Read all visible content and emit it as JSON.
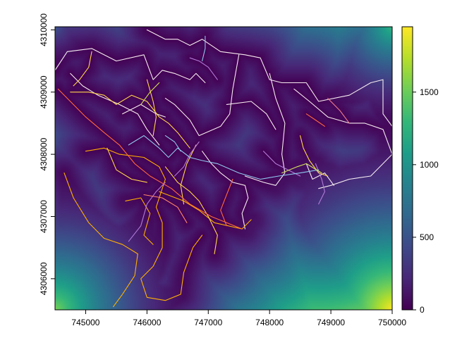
{
  "chart_data": {
    "type": "heatmap",
    "title": "",
    "xlabel": "",
    "ylabel": "",
    "xlim": [
      744500,
      750000
    ],
    "ylim": [
      4305500,
      4310050
    ],
    "x_ticks": [
      745000,
      746000,
      747000,
      748000,
      749000,
      750000
    ],
    "y_ticks": [
      4306000,
      4307000,
      4308000,
      4309000,
      4310000
    ],
    "x_tick_labels": [
      "745000",
      "746000",
      "747000",
      "748000",
      "749000",
      "750000"
    ],
    "y_tick_labels": [
      "4306000",
      "4307000",
      "4308000",
      "4309000",
      "4310000"
    ],
    "colorbar": {
      "palette": "viridis",
      "range": [
        0,
        1950
      ],
      "ticks": [
        0,
        500,
        1000,
        1500
      ],
      "tick_labels": [
        "0",
        "500",
        "1000",
        "1500"
      ]
    },
    "grid": false,
    "legend": "colorbar-right",
    "raster_description": "distance-to-road surface; highest values in the south-east and south-west corners and north-east corner",
    "road_colors": [
      "#f5ecf0",
      "#ffb000",
      "#ffd84d",
      "#ff6a3d",
      "#b07cd8",
      "#8ec9ee",
      "#ff8a6a",
      "#f27f8d",
      "#d2e15a"
    ],
    "roads": [
      {
        "color": "#f5ecf0",
        "points": [
          [
            744500,
            4309350
          ],
          [
            744700,
            4309650
          ],
          [
            745100,
            4309700
          ],
          [
            745500,
            4309500
          ],
          [
            745950,
            4309600
          ],
          [
            746100,
            4309200
          ],
          [
            746250,
            4309350
          ],
          [
            746450,
            4309300
          ],
          [
            746700,
            4309200
          ],
          [
            746800,
            4309300
          ],
          [
            746950,
            4309150
          ]
        ]
      },
      {
        "color": "#f5ecf0",
        "points": [
          [
            746000,
            4310000
          ],
          [
            746300,
            4309850
          ],
          [
            746500,
            4309850
          ],
          [
            746700,
            4309750
          ],
          [
            746900,
            4309850
          ],
          [
            747200,
            4309650
          ],
          [
            747600,
            4309600
          ],
          [
            747850,
            4309550
          ],
          [
            748000,
            4309200
          ],
          [
            748200,
            4309150
          ],
          [
            748600,
            4309150
          ],
          [
            748800,
            4308850
          ],
          [
            749300,
            4308950
          ],
          [
            749650,
            4309150
          ],
          [
            749850,
            4309200
          ],
          [
            749850,
            4308650
          ],
          [
            750000,
            4308450
          ]
        ]
      },
      {
        "color": "#f5ecf0",
        "points": [
          [
            748400,
            4309050
          ],
          [
            748650,
            4308850
          ],
          [
            748950,
            4308600
          ],
          [
            749300,
            4308500
          ],
          [
            749550,
            4308500
          ],
          [
            749850,
            4308400
          ],
          [
            750000,
            4308000
          ],
          [
            749650,
            4307650
          ],
          [
            749300,
            4307600
          ],
          [
            749000,
            4307500
          ],
          [
            748800,
            4307450
          ]
        ]
      },
      {
        "color": "#f5ecf0",
        "points": [
          [
            748000,
            4309300
          ],
          [
            748100,
            4308900
          ],
          [
            748250,
            4308500
          ],
          [
            748200,
            4308000
          ],
          [
            748250,
            4307700
          ],
          [
            748100,
            4307500
          ],
          [
            747900,
            4307550
          ],
          [
            747600,
            4307650
          ]
        ]
      },
      {
        "color": "#f5ecf0",
        "points": [
          [
            747500,
            4309600
          ],
          [
            747400,
            4309050
          ],
          [
            747350,
            4308650
          ],
          [
            747200,
            4308450
          ],
          [
            746850,
            4308300
          ],
          [
            746700,
            4308550
          ],
          [
            746450,
            4308800
          ],
          [
            746300,
            4308900
          ]
        ]
      },
      {
        "color": "#f5ecf0",
        "points": [
          [
            746900,
            4308050
          ],
          [
            747050,
            4307850
          ],
          [
            747200,
            4307700
          ],
          [
            747400,
            4307550
          ],
          [
            747600,
            4307500
          ],
          [
            747650,
            4307300
          ],
          [
            747550,
            4307050
          ],
          [
            747600,
            4306800
          ]
        ]
      },
      {
        "color": "#f5ecf0",
        "points": [
          [
            744750,
            4309300
          ],
          [
            744950,
            4309100
          ],
          [
            745200,
            4308950
          ],
          [
            745550,
            4308800
          ],
          [
            745850,
            4308650
          ],
          [
            746000,
            4308400
          ],
          [
            746200,
            4308150
          ]
        ]
      },
      {
        "color": "#f5ecf0",
        "points": [
          [
            747300,
            4308800
          ],
          [
            747700,
            4308850
          ],
          [
            747950,
            4308650
          ],
          [
            748100,
            4308400
          ]
        ]
      },
      {
        "color": "#f5ecf0",
        "points": [
          [
            748600,
            4307850
          ],
          [
            748700,
            4307600
          ],
          [
            748900,
            4307700
          ],
          [
            749050,
            4307500
          ]
        ]
      },
      {
        "color": "#f5ecf0",
        "points": [
          [
            745600,
            4308650
          ],
          [
            745900,
            4308800
          ],
          [
            746150,
            4308650
          ],
          [
            746300,
            4308600
          ]
        ]
      },
      {
        "color": "#ffb000",
        "points": [
          [
            745000,
            4308050
          ],
          [
            745300,
            4308100
          ],
          [
            745550,
            4308000
          ],
          [
            745950,
            4307950
          ],
          [
            746200,
            4307800
          ],
          [
            746300,
            4307600
          ],
          [
            746150,
            4307150
          ],
          [
            746250,
            4306900
          ],
          [
            746250,
            4306500
          ],
          [
            746100,
            4306200
          ],
          [
            745900,
            4306000
          ],
          [
            746000,
            4305700
          ],
          [
            746300,
            4305650
          ],
          [
            746550,
            4305750
          ],
          [
            746600,
            4306100
          ],
          [
            746750,
            4306500
          ],
          [
            746900,
            4306700
          ]
        ]
      },
      {
        "color": "#ffb000",
        "points": [
          [
            744650,
            4307700
          ],
          [
            744800,
            4307300
          ],
          [
            745050,
            4306900
          ],
          [
            745300,
            4306650
          ],
          [
            745600,
            4306550
          ],
          [
            745850,
            4306400
          ],
          [
            745800,
            4306050
          ],
          [
            745600,
            4305750
          ],
          [
            745450,
            4305550
          ]
        ]
      },
      {
        "color": "#ffb000",
        "points": [
          [
            746200,
            4307400
          ],
          [
            746600,
            4307250
          ],
          [
            746850,
            4307100
          ],
          [
            747100,
            4306900
          ],
          [
            747550,
            4306800
          ],
          [
            747700,
            4306950
          ]
        ]
      },
      {
        "color": "#ffb000",
        "points": [
          [
            745650,
            4307250
          ],
          [
            745900,
            4307300
          ],
          [
            746050,
            4307050
          ],
          [
            745950,
            4306700
          ],
          [
            746100,
            4306550
          ]
        ]
      },
      {
        "color": "#ffd84d",
        "points": [
          [
            744750,
            4309000
          ],
          [
            745050,
            4309000
          ],
          [
            745300,
            4308950
          ],
          [
            745500,
            4308800
          ],
          [
            745750,
            4308950
          ],
          [
            746000,
            4308850
          ],
          [
            746200,
            4308600
          ],
          [
            746350,
            4308500
          ],
          [
            746500,
            4308350
          ],
          [
            746700,
            4308100
          ]
        ]
      },
      {
        "color": "#ffd84d",
        "points": [
          [
            745100,
            4309650
          ],
          [
            745050,
            4309400
          ],
          [
            744900,
            4309200
          ],
          [
            744800,
            4309100
          ]
        ]
      },
      {
        "color": "#ffd84d",
        "points": [
          [
            746000,
            4309200
          ],
          [
            746100,
            4308850
          ],
          [
            746150,
            4308600
          ],
          [
            746100,
            4308300
          ]
        ]
      },
      {
        "color": "#ffd84d",
        "points": [
          [
            746300,
            4307800
          ],
          [
            746500,
            4307550
          ],
          [
            746700,
            4307400
          ],
          [
            746850,
            4307250
          ],
          [
            747000,
            4307000
          ],
          [
            747150,
            4306700
          ],
          [
            747100,
            4306400
          ]
        ]
      },
      {
        "color": "#ffd84d",
        "points": [
          [
            746800,
            4308150
          ],
          [
            746650,
            4307850
          ],
          [
            746550,
            4307500
          ],
          [
            746600,
            4307200
          ]
        ]
      },
      {
        "color": "#ffd84d",
        "points": [
          [
            748500,
            4308300
          ],
          [
            748550,
            4308100
          ],
          [
            748650,
            4307900
          ],
          [
            748800,
            4307700
          ],
          [
            748950,
            4307650
          ]
        ]
      },
      {
        "color": "#ffd84d",
        "points": [
          [
            745350,
            4308100
          ],
          [
            745500,
            4307750
          ],
          [
            745750,
            4307600
          ],
          [
            746000,
            4307550
          ]
        ]
      },
      {
        "color": "#ff6a3d",
        "points": [
          [
            744550,
            4309050
          ],
          [
            744750,
            4308850
          ],
          [
            745000,
            4308600
          ],
          [
            745300,
            4308350
          ],
          [
            745550,
            4308150
          ],
          [
            745800,
            4307850
          ],
          [
            746050,
            4307650
          ],
          [
            746400,
            4307450
          ],
          [
            746700,
            4307200
          ],
          [
            747050,
            4307000
          ],
          [
            747300,
            4306900
          ],
          [
            747550,
            4306800
          ]
        ]
      },
      {
        "color": "#ff6a3d",
        "points": [
          [
            748600,
            4308650
          ],
          [
            748750,
            4308550
          ],
          [
            748900,
            4308450
          ]
        ]
      },
      {
        "color": "#ff6a3d",
        "points": [
          [
            747400,
            4307600
          ],
          [
            747300,
            4307350
          ],
          [
            747200,
            4307100
          ],
          [
            747300,
            4306850
          ]
        ]
      },
      {
        "color": "#b07cd8",
        "points": [
          [
            746700,
            4309550
          ],
          [
            746850,
            4309500
          ],
          [
            747000,
            4309400
          ],
          [
            747150,
            4309200
          ]
        ]
      },
      {
        "color": "#b07cd8",
        "points": [
          [
            746850,
            4308200
          ],
          [
            746700,
            4308000
          ],
          [
            746600,
            4307800
          ],
          [
            746450,
            4307650
          ]
        ]
      },
      {
        "color": "#b07cd8",
        "points": [
          [
            746300,
            4307550
          ],
          [
            746150,
            4307400
          ],
          [
            746000,
            4307200
          ],
          [
            745900,
            4306850
          ],
          [
            745700,
            4306600
          ]
        ]
      },
      {
        "color": "#b07cd8",
        "points": [
          [
            748750,
            4307850
          ],
          [
            748850,
            4307600
          ],
          [
            748900,
            4307400
          ],
          [
            748800,
            4307200
          ]
        ]
      },
      {
        "color": "#b07cd8",
        "points": [
          [
            747900,
            4308050
          ],
          [
            748100,
            4307850
          ],
          [
            748300,
            4307750
          ],
          [
            748500,
            4307650
          ]
        ]
      },
      {
        "color": "#8ec9ee",
        "points": [
          [
            745700,
            4308150
          ],
          [
            745950,
            4308300
          ],
          [
            746200,
            4308100
          ],
          [
            746350,
            4307950
          ],
          [
            746500,
            4308100
          ],
          [
            746700,
            4307950
          ],
          [
            746900,
            4307900
          ],
          [
            747150,
            4307850
          ],
          [
            747500,
            4307700
          ],
          [
            747850,
            4307600
          ],
          [
            748150,
            4307650
          ],
          [
            748500,
            4307700
          ],
          [
            748800,
            4307750
          ]
        ]
      },
      {
        "color": "#8ec9ee",
        "points": [
          [
            746950,
            4309900
          ],
          [
            746950,
            4309700
          ],
          [
            746900,
            4309500
          ]
        ]
      },
      {
        "color": "#8ec9ee",
        "points": [
          [
            746300,
            4308300
          ],
          [
            746450,
            4308200
          ],
          [
            746550,
            4308050
          ]
        ]
      },
      {
        "color": "#ff8a6a",
        "points": [
          [
            745950,
            4307350
          ],
          [
            746250,
            4307300
          ],
          [
            746500,
            4307150
          ],
          [
            746650,
            4306900
          ]
        ]
      },
      {
        "color": "#f27f8d",
        "points": [
          [
            748950,
            4308900
          ],
          [
            749150,
            4308700
          ],
          [
            749300,
            4308500
          ]
        ]
      },
      {
        "color": "#d2e15a",
        "points": [
          [
            748200,
            4307700
          ],
          [
            748450,
            4307800
          ],
          [
            748600,
            4307850
          ],
          [
            748850,
            4307700
          ]
        ]
      },
      {
        "color": "#d2e15a",
        "points": [
          [
            745900,
            4308800
          ],
          [
            746050,
            4309000
          ],
          [
            746200,
            4309150
          ]
        ]
      }
    ],
    "hotspots": [
      {
        "x": 750000,
        "y": 4305500,
        "value": 1950,
        "radius": 3400
      },
      {
        "x": 744500,
        "y": 4305500,
        "value": 1550,
        "radius": 2600
      },
      {
        "x": 750000,
        "y": 4310050,
        "value": 1250,
        "radius": 1900
      },
      {
        "x": 744500,
        "y": 4310050,
        "value": 500,
        "radius": 800
      }
    ]
  }
}
